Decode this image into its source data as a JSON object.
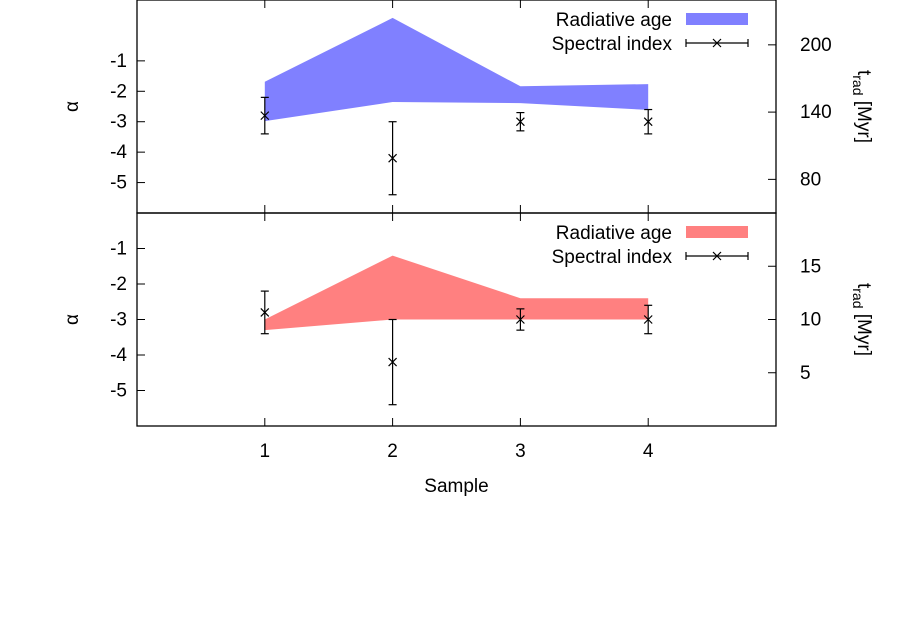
{
  "chart_data": [
    {
      "type": "area",
      "panel": "top",
      "ylabel_left": "α",
      "ylabel_right": {
        "main": "t",
        "sub": "rad",
        "unit": " [Myr]"
      },
      "x_ticks": [],
      "y_left_ticks": [
        -1,
        -2,
        -3,
        -4,
        -5
      ],
      "y_left_lim": [
        -6,
        1
      ],
      "y_right_ticks": [
        80,
        140,
        200
      ],
      "y_right_lim": [
        50,
        240
      ],
      "legend_position": "top-right",
      "band_color": "#8080ff",
      "series": [
        {
          "name": "Radiative age",
          "kind": "band",
          "x": [
            1,
            2,
            3,
            4
          ],
          "upper": [
            167,
            224,
            163,
            165
          ],
          "lower": [
            132,
            149,
            148,
            142
          ]
        },
        {
          "name": "Spectral index",
          "kind": "errorbar",
          "x": [
            1,
            2,
            3,
            4
          ],
          "y": [
            -2.8,
            -4.2,
            -3.0,
            -3.0
          ],
          "yerr_low": [
            -3.4,
            -5.4,
            -3.3,
            -3.4
          ],
          "yerr_high": [
            -2.2,
            -3.0,
            -2.7,
            -2.6
          ]
        }
      ]
    },
    {
      "type": "area",
      "panel": "bottom",
      "xlabel": "Sample",
      "ylabel_left": "α",
      "ylabel_right": {
        "main": "t",
        "sub": "rad",
        "unit": " [Myr]"
      },
      "x_ticks": [
        1,
        2,
        3,
        4
      ],
      "x_lim": [
        0,
        5
      ],
      "y_left_ticks": [
        -1,
        -2,
        -3,
        -4,
        -5
      ],
      "y_left_lim": [
        -6,
        0
      ],
      "y_right_ticks": [
        5,
        10,
        15
      ],
      "y_right_lim": [
        0,
        20
      ],
      "legend_position": "top-right",
      "band_color": "#ff8080",
      "series": [
        {
          "name": "Radiative age",
          "kind": "band",
          "x": [
            1,
            2,
            3,
            4
          ],
          "upper": [
            10,
            16,
            12,
            12
          ],
          "lower": [
            9,
            10,
            10,
            10
          ]
        },
        {
          "name": "Spectral index",
          "kind": "errorbar",
          "x": [
            1,
            2,
            3,
            4
          ],
          "y": [
            -2.8,
            -4.2,
            -3.0,
            -3.0
          ],
          "yerr_low": [
            -3.4,
            -5.4,
            -3.3,
            -3.4
          ],
          "yerr_high": [
            -2.2,
            -3.0,
            -2.7,
            -2.6
          ]
        }
      ]
    }
  ]
}
